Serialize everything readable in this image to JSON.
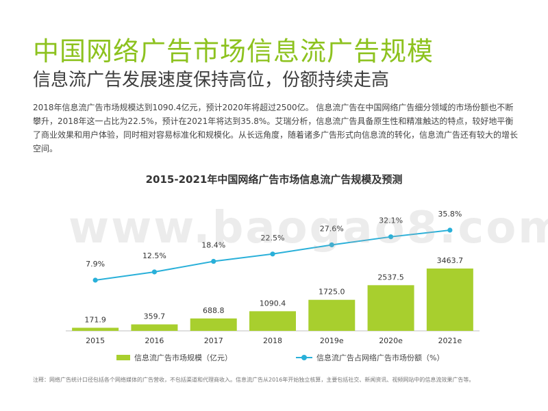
{
  "header": {
    "title": "中国网络广告市场信息流广告规模",
    "subtitle": "信息流广告发展速度保持高位，份额持续走高",
    "description": "2018年信息流广告市场规模达到1090.4亿元，预计2020年将超过2500亿。  信息流广告在中国网络广告细分领域的市场份额也不断攀升，2018年这一占比为22.5%，预计在2021年将达到35.8%。艾瑞分析，信息流广告具备原生性和精准触达的特点，较好地平衡了商业效果和用户体验，同时相对容易标准化和规模化。从长远角度，随着诸多广告形式向信息流的转化，信息流广告还有较大的增长空间。"
  },
  "watermark": "www.baogao8.com",
  "footnote": "注释：网络广告统计口径包括各个网络媒体的广告营收，不包括渠道和代理商收入。信息流广告从2016年开始独立核算，主要包括社交、新闻资讯、视频网站中的信息流效果广告等。",
  "colors": {
    "accent": "#8dc21f",
    "bar": "#a8cf2e",
    "line": "#29b0d9"
  },
  "chart_data": {
    "type": "bar",
    "title": "2015-2021年中国网络广告市场信息流广告规模及预测",
    "categories": [
      "2015",
      "2016",
      "2017",
      "2018",
      "2019e",
      "2020e",
      "2021e"
    ],
    "series": [
      {
        "name": "信息流广告市场规模（亿元）",
        "type": "bar",
        "axis": "left",
        "values": [
          171.9,
          359.7,
          688.8,
          1090.4,
          1725.0,
          2537.5,
          3463.7
        ],
        "labels": [
          "171.9",
          "359.7",
          "688.8",
          "1090.4",
          "1725.0",
          "2537.5",
          "3463.7"
        ]
      },
      {
        "name": "信息流广告占网络广告市场份额（%）",
        "type": "line",
        "axis": "right",
        "values": [
          7.9,
          12.5,
          18.4,
          22.5,
          27.6,
          32.1,
          35.8
        ],
        "labels": [
          "7.9%",
          "12.5%",
          "18.4%",
          "22.5%",
          "27.6%",
          "32.1%",
          "35.8%"
        ]
      }
    ],
    "legend_position": "bottom",
    "grid": false
  }
}
